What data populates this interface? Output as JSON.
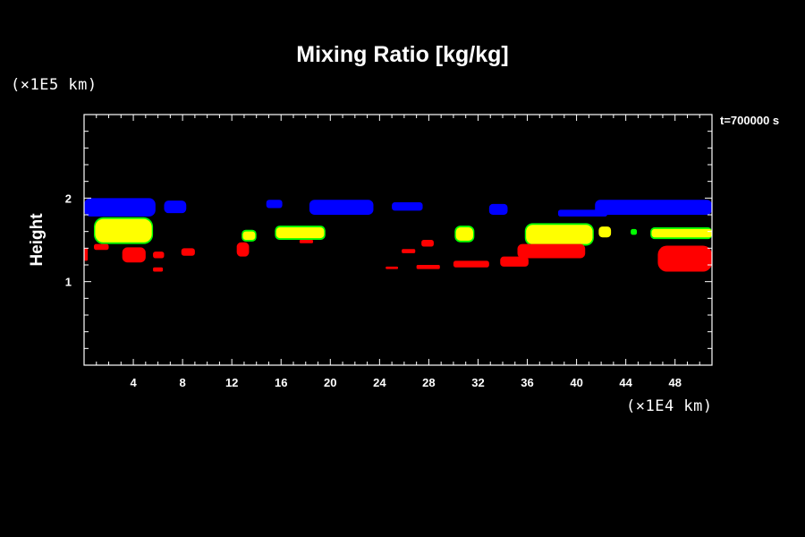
{
  "chart_data": {
    "type": "heatmap",
    "title": "Mixing Ratio [kg/kg]",
    "annotation": "t=700000 s",
    "ylabel": "Height",
    "x_unit": "(×1E4 km)",
    "y_unit": "(×1E5 km)",
    "xlim": [
      0,
      51
    ],
    "ylim": [
      0,
      3
    ],
    "x_ticks": [
      4,
      8,
      12,
      16,
      20,
      24,
      28,
      32,
      36,
      40,
      44,
      48
    ],
    "y_ticks": [
      1,
      2
    ],
    "grid": false,
    "legend": "none",
    "colors": {
      "blue": "#0000ff",
      "yellow": "#ffff00",
      "green": "#00ff00",
      "red": "#ff0000"
    },
    "cells": [
      {
        "x0": 0.0,
        "x1": 5.8,
        "y0": 1.78,
        "y1": 2.0,
        "color": "blue"
      },
      {
        "x0": 6.5,
        "x1": 8.3,
        "y0": 1.82,
        "y1": 1.97,
        "color": "blue"
      },
      {
        "x0": 14.8,
        "x1": 16.1,
        "y0": 1.88,
        "y1": 1.98,
        "color": "blue"
      },
      {
        "x0": 18.3,
        "x1": 23.5,
        "y0": 1.8,
        "y1": 1.98,
        "color": "blue"
      },
      {
        "x0": 25.0,
        "x1": 27.5,
        "y0": 1.85,
        "y1": 1.95,
        "color": "blue"
      },
      {
        "x0": 32.9,
        "x1": 34.4,
        "y0": 1.8,
        "y1": 1.93,
        "color": "blue"
      },
      {
        "x0": 38.5,
        "x1": 42.5,
        "y0": 1.78,
        "y1": 1.86,
        "color": "blue"
      },
      {
        "x0": 41.5,
        "x1": 51.0,
        "y0": 1.8,
        "y1": 1.98,
        "color": "blue"
      },
      {
        "x0": 0.8,
        "x1": 5.6,
        "y0": 1.45,
        "y1": 1.77,
        "color": "green"
      },
      {
        "x0": 0.9,
        "x1": 5.5,
        "y0": 1.47,
        "y1": 1.75,
        "color": "yellow"
      },
      {
        "x0": 12.8,
        "x1": 14.0,
        "y0": 1.48,
        "y1": 1.62,
        "color": "green"
      },
      {
        "x0": 12.9,
        "x1": 13.9,
        "y0": 1.5,
        "y1": 1.6,
        "color": "yellow"
      },
      {
        "x0": 15.5,
        "x1": 19.6,
        "y0": 1.5,
        "y1": 1.67,
        "color": "green"
      },
      {
        "x0": 15.6,
        "x1": 19.5,
        "y0": 1.52,
        "y1": 1.65,
        "color": "yellow"
      },
      {
        "x0": 30.1,
        "x1": 31.7,
        "y0": 1.47,
        "y1": 1.67,
        "color": "green"
      },
      {
        "x0": 30.2,
        "x1": 31.6,
        "y0": 1.49,
        "y1": 1.65,
        "color": "yellow"
      },
      {
        "x0": 35.8,
        "x1": 41.4,
        "y0": 1.43,
        "y1": 1.7,
        "color": "green"
      },
      {
        "x0": 35.9,
        "x1": 41.3,
        "y0": 1.45,
        "y1": 1.68,
        "color": "yellow"
      },
      {
        "x0": 41.8,
        "x1": 42.8,
        "y0": 1.53,
        "y1": 1.66,
        "color": "yellow"
      },
      {
        "x0": 44.4,
        "x1": 44.9,
        "y0": 1.56,
        "y1": 1.63,
        "color": "green"
      },
      {
        "x0": 46.0,
        "x1": 51.0,
        "y0": 1.51,
        "y1": 1.65,
        "color": "green"
      },
      {
        "x0": 46.1,
        "x1": 51.0,
        "y0": 1.53,
        "y1": 1.63,
        "color": "yellow"
      },
      {
        "x0": 0.0,
        "x1": 0.3,
        "y0": 1.25,
        "y1": 1.4,
        "color": "red"
      },
      {
        "x0": 0.8,
        "x1": 2.0,
        "y0": 1.38,
        "y1": 1.45,
        "color": "red"
      },
      {
        "x0": 3.1,
        "x1": 5.0,
        "y0": 1.23,
        "y1": 1.41,
        "color": "red"
      },
      {
        "x0": 5.6,
        "x1": 6.5,
        "y0": 1.28,
        "y1": 1.36,
        "color": "red"
      },
      {
        "x0": 5.6,
        "x1": 6.4,
        "y0": 1.12,
        "y1": 1.17,
        "color": "red"
      },
      {
        "x0": 7.9,
        "x1": 9.0,
        "y0": 1.31,
        "y1": 1.4,
        "color": "red"
      },
      {
        "x0": 12.4,
        "x1": 13.4,
        "y0": 1.3,
        "y1": 1.47,
        "color": "red"
      },
      {
        "x0": 17.5,
        "x1": 18.6,
        "y0": 1.46,
        "y1": 1.5,
        "color": "red"
      },
      {
        "x0": 24.5,
        "x1": 25.5,
        "y0": 1.15,
        "y1": 1.18,
        "color": "red"
      },
      {
        "x0": 25.8,
        "x1": 26.9,
        "y0": 1.34,
        "y1": 1.39,
        "color": "red"
      },
      {
        "x0": 27.4,
        "x1": 28.4,
        "y0": 1.42,
        "y1": 1.5,
        "color": "red"
      },
      {
        "x0": 27.0,
        "x1": 28.9,
        "y0": 1.15,
        "y1": 1.2,
        "color": "red"
      },
      {
        "x0": 30.0,
        "x1": 32.9,
        "y0": 1.17,
        "y1": 1.25,
        "color": "red"
      },
      {
        "x0": 33.8,
        "x1": 36.1,
        "y0": 1.18,
        "y1": 1.3,
        "color": "red"
      },
      {
        "x0": 35.2,
        "x1": 40.7,
        "y0": 1.28,
        "y1": 1.45,
        "color": "red"
      },
      {
        "x0": 46.6,
        "x1": 51.0,
        "y0": 1.12,
        "y1": 1.43,
        "color": "red"
      }
    ]
  }
}
